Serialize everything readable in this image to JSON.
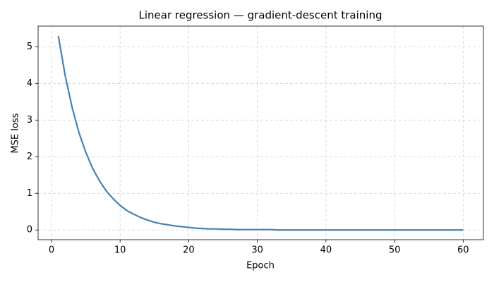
{
  "chart_data": {
    "type": "line",
    "title": "Linear regression — gradient-descent training",
    "x_label": "Epoch",
    "y_label": "MSE loss",
    "x": [
      1,
      2,
      3,
      4,
      5,
      6,
      7,
      8,
      9,
      10,
      11,
      12,
      13,
      14,
      15,
      16,
      17,
      18,
      19,
      20,
      21,
      22,
      23,
      24,
      25,
      26,
      27,
      28,
      29,
      30,
      31,
      32,
      33,
      34,
      35,
      36,
      37,
      38,
      39,
      40,
      41,
      42,
      43,
      44,
      45,
      46,
      47,
      48,
      49,
      50,
      51,
      52,
      53,
      54,
      55,
      56,
      57,
      58,
      59,
      60
    ],
    "series": [
      {
        "name": "MSE loss",
        "color": "#4682b4",
        "values": [
          5.3,
          4.21,
          3.35,
          2.66,
          2.12,
          1.68,
          1.34,
          1.06,
          0.85,
          0.67,
          0.53,
          0.43,
          0.34,
          0.27,
          0.21,
          0.17,
          0.14,
          0.11,
          0.09,
          0.07,
          0.05,
          0.04,
          0.03,
          0.03,
          0.02,
          0.02,
          0.01,
          0.01,
          0.01,
          0.01,
          0.01,
          0.01,
          0,
          0,
          0,
          0,
          0,
          0,
          0,
          0,
          0,
          0,
          0,
          0,
          0,
          0,
          0,
          0,
          0,
          0,
          0,
          0,
          0,
          0,
          0,
          0,
          0,
          0,
          0,
          0
        ]
      }
    ],
    "xlim": [
      -1.95,
      62.95
    ],
    "ylim": [
      -0.265,
      5.565
    ],
    "xticks": [
      0,
      10,
      20,
      30,
      40,
      50,
      60
    ],
    "yticks": [
      0,
      1,
      2,
      3,
      4,
      5
    ],
    "grid": true
  }
}
